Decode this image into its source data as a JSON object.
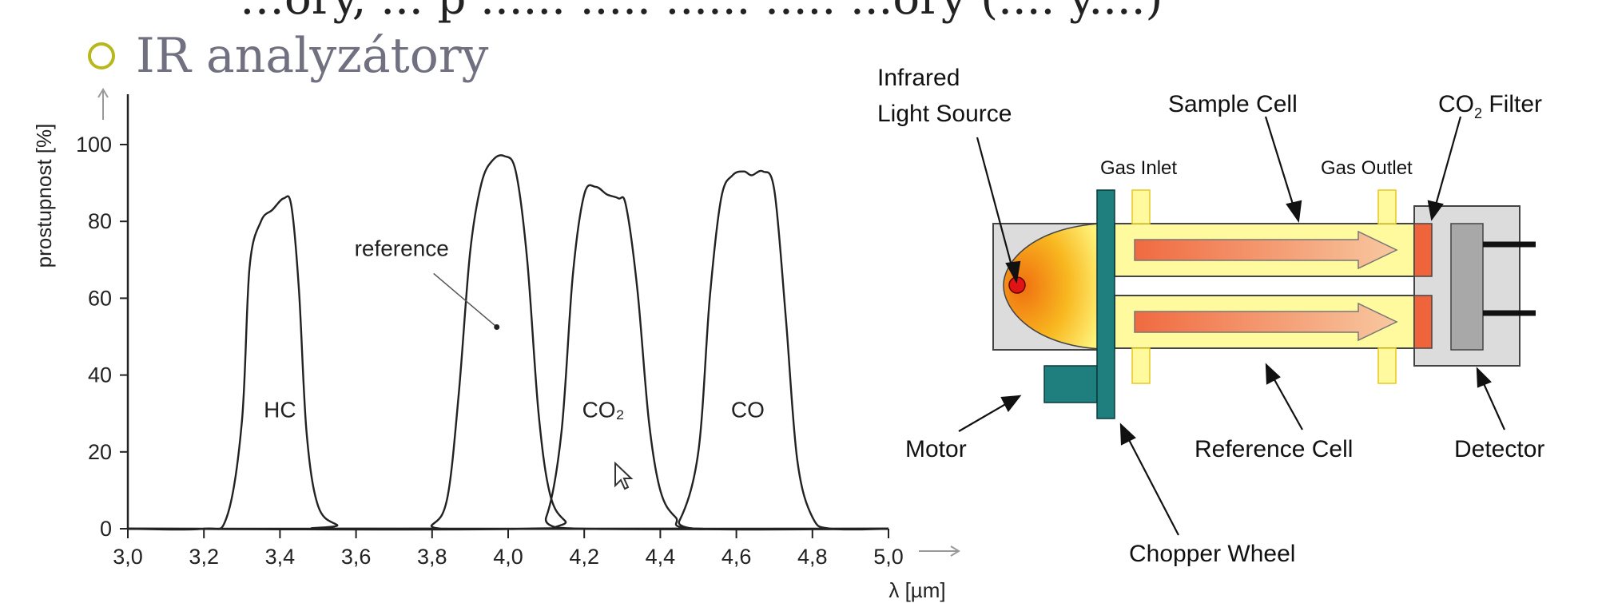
{
  "slide": {
    "top_text_fragment": "…ory, ... p ...... ..... ...... ..... ...ory (.... y....)",
    "title": "IR analyzátory"
  },
  "chart_data": {
    "type": "line",
    "xlabel": "λ [µm]",
    "ylabel": "prostupnost [%]",
    "xlim": [
      3.0,
      5.0
    ],
    "ylim": [
      0,
      100
    ],
    "x_ticks": [
      "3,0",
      "3,2",
      "3,4",
      "3,6",
      "3,8",
      "4,0",
      "4,2",
      "4,4",
      "4,6",
      "4,8",
      "5,0"
    ],
    "y_ticks": [
      "0",
      "20",
      "40",
      "60",
      "80",
      "100"
    ],
    "grid": false,
    "series": [
      {
        "name": "HC",
        "label_pos": [
          3.4,
          29
        ],
        "points": [
          [
            3.0,
            0
          ],
          [
            3.2,
            0
          ],
          [
            3.26,
            3
          ],
          [
            3.3,
            28
          ],
          [
            3.32,
            68
          ],
          [
            3.35,
            80
          ],
          [
            3.38,
            83
          ],
          [
            3.41,
            86
          ],
          [
            3.43,
            84
          ],
          [
            3.45,
            62
          ],
          [
            3.47,
            25
          ],
          [
            3.5,
            6
          ],
          [
            3.55,
            1
          ],
          [
            3.6,
            0
          ],
          [
            5.0,
            0
          ]
        ]
      },
      {
        "name": "reference",
        "label_pos": [
          3.72,
          71
        ],
        "points": [
          [
            3.0,
            0
          ],
          [
            3.75,
            0
          ],
          [
            3.8,
            1
          ],
          [
            3.84,
            8
          ],
          [
            3.87,
            35
          ],
          [
            3.9,
            72
          ],
          [
            3.93,
            90
          ],
          [
            3.96,
            96
          ],
          [
            3.99,
            97
          ],
          [
            4.02,
            93
          ],
          [
            4.05,
            70
          ],
          [
            4.08,
            30
          ],
          [
            4.11,
            9
          ],
          [
            4.15,
            2
          ],
          [
            4.2,
            0
          ],
          [
            5.0,
            0
          ]
        ]
      },
      {
        "name": "CO₂",
        "label_pos": [
          4.25,
          29
        ],
        "points": [
          [
            3.0,
            0
          ],
          [
            4.05,
            0
          ],
          [
            4.1,
            3
          ],
          [
            4.14,
            25
          ],
          [
            4.17,
            66
          ],
          [
            4.2,
            87
          ],
          [
            4.23,
            89
          ],
          [
            4.26,
            87
          ],
          [
            4.29,
            86
          ],
          [
            4.31,
            84
          ],
          [
            4.34,
            62
          ],
          [
            4.37,
            28
          ],
          [
            4.4,
            10
          ],
          [
            4.44,
            3
          ],
          [
            4.5,
            0
          ],
          [
            5.0,
            0
          ]
        ]
      },
      {
        "name": "CO",
        "label_pos": [
          4.63,
          29
        ],
        "points": [
          [
            3.0,
            0
          ],
          [
            4.4,
            0
          ],
          [
            4.45,
            2
          ],
          [
            4.5,
            20
          ],
          [
            4.53,
            60
          ],
          [
            4.56,
            86
          ],
          [
            4.59,
            92
          ],
          [
            4.62,
            93
          ],
          [
            4.64,
            92
          ],
          [
            4.67,
            93
          ],
          [
            4.7,
            88
          ],
          [
            4.73,
            55
          ],
          [
            4.76,
            18
          ],
          [
            4.8,
            3
          ],
          [
            4.85,
            0
          ],
          [
            5.0,
            0
          ]
        ]
      }
    ],
    "annotation": {
      "text": "reference",
      "pointer_to": [
        3.97,
        52.5
      ]
    }
  },
  "diagram": {
    "labels": {
      "infrared_source": [
        "Infrared",
        "Light Source"
      ],
      "sample_cell": "Sample Cell",
      "co2_filter": "CO",
      "co2_filter_sub": "2",
      "co2_filter_tail": " Filter",
      "gas_inlet": "Gas Inlet",
      "gas_outlet": "Gas Outlet",
      "motor": "Motor",
      "reference_cell": "Reference Cell",
      "detector": "Detector",
      "chopper_wheel": "Chopper Wheel"
    },
    "colors": {
      "housing": "#dcdcdc",
      "tube": "#fffa9e",
      "tube_edge": "#e8c820",
      "beam": "#f07f50",
      "chopper": "#1f7f7f",
      "filter": "#f0643c",
      "detector": "#a8a8a8",
      "source": "#e01414"
    }
  }
}
